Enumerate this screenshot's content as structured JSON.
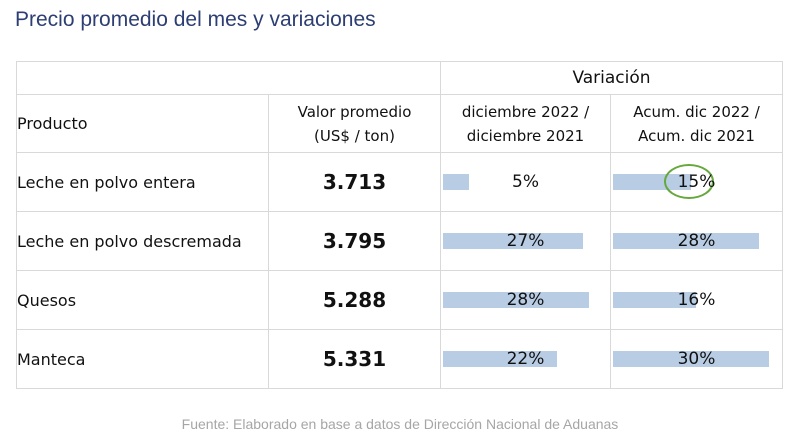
{
  "title": "Precio promedio del mes y variaciones",
  "header": {
    "variation_label": "Variación",
    "product_label": "Producto",
    "avg_line1": "Valor promedio",
    "avg_line2": "(US$ / ton)",
    "v1_line1": "diciembre 2022 /",
    "v1_line2": "diciembre 2021",
    "v2_line1": "Acum. dic 2022 /",
    "v2_line2": "Acum. dic 2021"
  },
  "colors": {
    "title": "#2c3e73",
    "price": "#7dbb42",
    "bar": "#b8cce4",
    "highlight_circle": "#66a83c"
  },
  "scale_max_pct": 30,
  "rows": [
    {
      "product": "Leche en polvo entera",
      "avg": "3.713",
      "v1": "5%",
      "v1_value": 5,
      "v2": "15%",
      "v2_value": 15
    },
    {
      "product": "Leche en polvo descremada",
      "avg": "3.795",
      "v1": "27%",
      "v1_value": 27,
      "v2": "28%",
      "v2_value": 28
    },
    {
      "product": "Quesos",
      "avg": "5.288",
      "v1": "28%",
      "v1_value": 28,
      "v2": "16%",
      "v2_value": 16
    },
    {
      "product": "Manteca",
      "avg": "5.331",
      "v1": "22%",
      "v1_value": 22,
      "v2": "30%",
      "v2_value": 30
    }
  ],
  "highlight": {
    "row": 0,
    "column": "v2"
  },
  "source": "Fuente: Elaborado en base a datos de Dirección Nacional de Aduanas"
}
